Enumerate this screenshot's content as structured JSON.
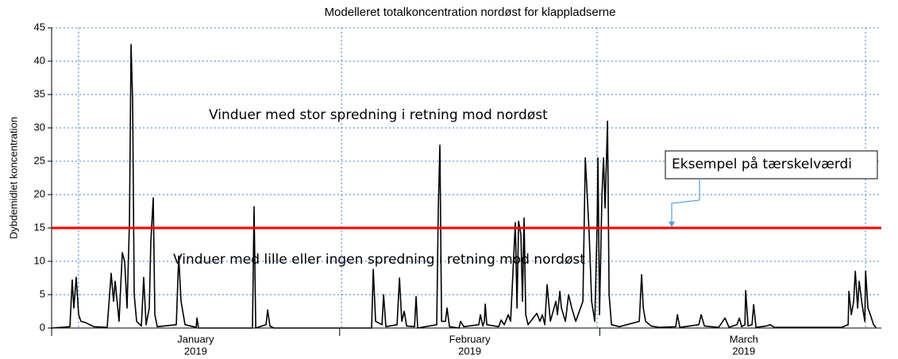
{
  "chart_data": {
    "type": "line",
    "title": "Modelleret totalkoncentration nordøst for klappladserne",
    "y_label": "Dybdemidlet koncentration",
    "color": "#000000",
    "x": [
      0.0,
      1.97,
      2.22,
      2.39,
      2.65,
      2.91,
      3.16,
      3.68,
      4.53,
      5.98,
      6.41,
      6.67,
      6.84,
      7.26,
      7.61,
      7.86,
      8.12,
      8.38,
      8.55,
      8.72,
      8.89,
      9.15,
      9.66,
      9.91,
      10.17,
      10.51,
      10.68,
      10.94,
      11.11,
      11.37,
      13.42,
      13.68,
      13.93,
      14.36,
      15.56,
      15.64,
      15.81,
      21.62,
      21.79,
      21.97,
      23.08,
      23.25,
      23.5,
      23.93,
      34.44,
      34.62,
      34.87,
      35.56,
      35.73,
      35.98,
      37.18,
      37.44,
      37.69,
      37.95,
      38.21,
      39.06,
      39.23,
      39.4,
      41.45,
      41.62,
      41.79,
      41.97,
      42.39,
      42.56,
      42.82,
      43.85,
      44.02,
      44.36,
      45.98,
      46.15,
      46.41,
      46.58,
      46.67,
      46.84,
      48.12,
      48.38,
      48.72,
      49.15,
      49.4,
      49.91,
      50.09,
      50.26,
      50.51,
      50.68,
      50.85,
      51.03,
      51.28,
      52.22,
      52.56,
      52.82,
      53.08,
      53.33,
      53.68,
      54.27,
      54.44,
      54.7,
      54.87,
      55.3,
      55.64,
      55.98,
      56.41,
      57.18,
      57.44,
      57.69,
      57.86,
      58.12,
      58.46,
      58.72,
      58.8,
      58.97,
      59.23,
      59.4,
      59.57,
      59.83,
      60.0,
      60.26,
      61.11,
      63.25,
      63.5,
      63.68,
      63.93,
      64.53,
      65.38,
      67.18,
      67.35,
      67.61,
      69.66,
      69.91,
      70.26,
      71.79,
      72.48,
      72.91,
      73.76,
      74.02,
      74.27,
      74.62,
      74.7,
      74.96,
      75.38,
      75.56,
      75.81,
      76.92,
      77.35,
      77.78,
      85.04,
      85.73,
      85.81,
      86.07,
      86.32,
      86.5,
      86.75,
      86.92,
      87.18,
      87.52,
      87.61,
      87.86,
      88.12,
      88.46,
      88.72
    ],
    "values": [
      0,
      0.2,
      7.2,
      3,
      7.6,
      2,
      1,
      0.8,
      0.2,
      0.1,
      8.2,
      4,
      7,
      1,
      11.3,
      10,
      3,
      16,
      42.5,
      34,
      5,
      1,
      0.3,
      7.6,
      0.5,
      3,
      13,
      19.5,
      2,
      0.2,
      0.5,
      10.8,
      4,
      0.5,
      0.1,
      1.5,
      0,
      0,
      18.2,
      0,
      0.5,
      2.7,
      0.3,
      0,
      0,
      8.8,
      1,
      0.5,
      5,
      0.2,
      0.5,
      7.5,
      1,
      2.5,
      0.3,
      0.2,
      4.7,
      0,
      0.5,
      18,
      27.4,
      1,
      1,
      3,
      0.2,
      0,
      1,
      0.2,
      0.5,
      2,
      0.3,
      1,
      3.6,
      0.5,
      0.2,
      1.2,
      0.5,
      2,
      1,
      15.8,
      3,
      16,
      14,
      4,
      16.5,
      2,
      0.5,
      2.2,
      1,
      2,
      0.5,
      6.5,
      1,
      4,
      2,
      5.5,
      3,
      1,
      5,
      3,
      1,
      4,
      25.5,
      18.7,
      14,
      4,
      1,
      16,
      25.5,
      2,
      20,
      25.5,
      18,
      31,
      5,
      0.5,
      0.2,
      1,
      8,
      3,
      1,
      0.3,
      0.1,
      0.2,
      2,
      0.1,
      0.5,
      2,
      0.3,
      0.1,
      1.5,
      0.1,
      0.5,
      1.5,
      0.2,
      0.5,
      5.6,
      0.3,
      0.5,
      3.5,
      0.1,
      0.3,
      0.5,
      0.1,
      0.1,
      0.5,
      5.5,
      2,
      4,
      8.5,
      3,
      7,
      4,
      1,
      8.5,
      3,
      2,
      0.5,
      0.1
    ],
    "xlim": [
      0,
      89.3
    ],
    "xticks": [
      {
        "value": 15.5,
        "label": "January",
        "sublabel": "2019"
      },
      {
        "value": 45,
        "label": "February",
        "sublabel": "2019"
      },
      {
        "value": 74.5,
        "label": "March",
        "sublabel": "2019"
      }
    ],
    "xboundaries": [
      0,
      31,
      59
    ],
    "xgrid": [
      2.9,
      31.2,
      58.7,
      87.6
    ],
    "ylim": [
      0,
      45
    ],
    "yticks": [
      0,
      5,
      10,
      15,
      20,
      25,
      30,
      35,
      40,
      45
    ],
    "grid": true,
    "threshold": {
      "value": 15,
      "color": "#ff0000",
      "label": "Eksempel på tærskelværdi"
    },
    "annotations": [
      "Vinduer med stor spredning i retning mod nordøst",
      "Vinduer med lille eller ingen spredning i retning mod nordøst"
    ]
  }
}
